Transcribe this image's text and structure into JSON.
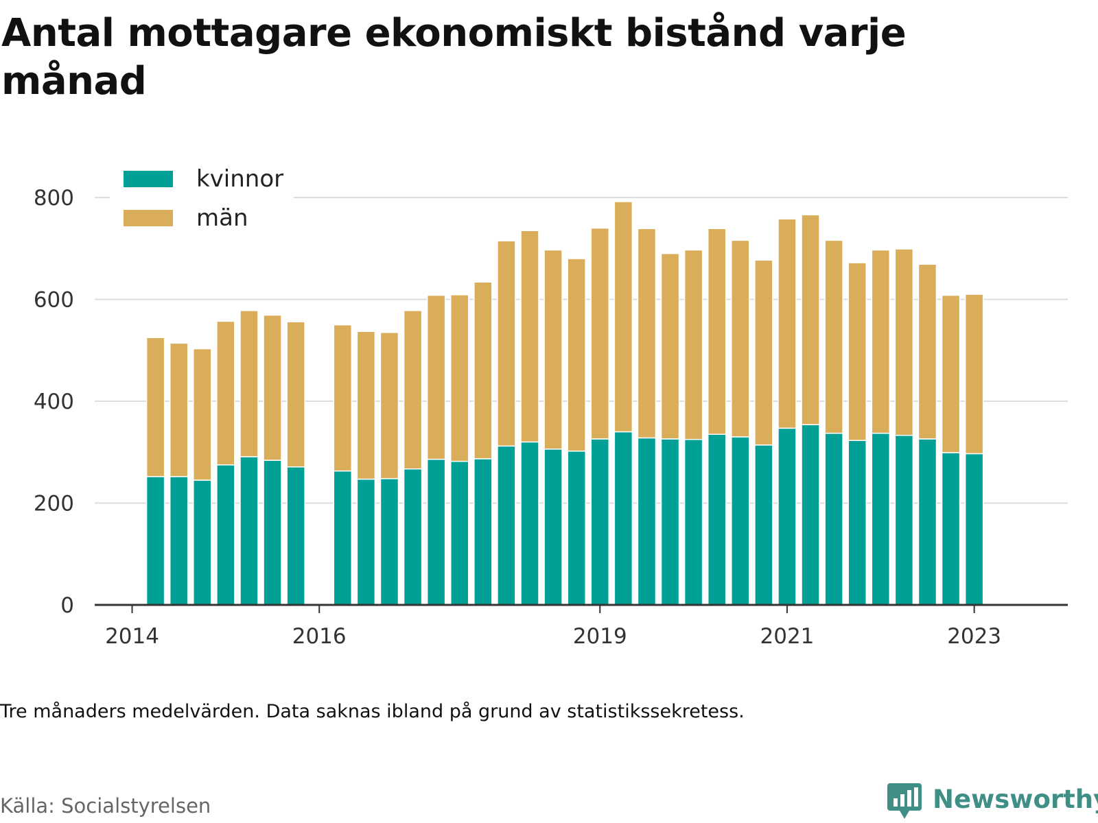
{
  "title": "Antal mottagare ekonomiskt bistånd varje månad",
  "note": "Tre månaders medelvärden. Data saknas ibland på grund av statistikssekretess.",
  "source": "Källa: Socialstyrelsen",
  "brand": {
    "name": "Newsworthy",
    "icon": "bar-chart-speech-bubble-icon"
  },
  "colors": {
    "kvinnor": "#00a096",
    "man": "#d9ad5a",
    "grid": "#dddddd",
    "axis": "#333333"
  },
  "chart_data": {
    "type": "bar",
    "stacked": true,
    "title": "Antal mottagare ekonomiskt bistånd varje månad",
    "xlabel": "",
    "ylabel": "",
    "ylim": [
      0,
      800
    ],
    "yticks": [
      0,
      200,
      400,
      600,
      800
    ],
    "xticks": [
      {
        "label": "2014",
        "at": 2014.0
      },
      {
        "label": "2016",
        "at": 2016.0
      },
      {
        "label": "2019",
        "at": 2019.0
      },
      {
        "label": "2021",
        "at": 2021.0
      },
      {
        "label": "2023",
        "at": 2023.0
      }
    ],
    "x": [
      2014.25,
      2014.5,
      2014.75,
      2015.0,
      2015.25,
      2015.5,
      2015.75,
      2016.25,
      2016.5,
      2016.75,
      2017.0,
      2017.25,
      2017.5,
      2017.75,
      2018.0,
      2018.25,
      2018.5,
      2018.75,
      2019.0,
      2019.25,
      2019.5,
      2019.75,
      2020.0,
      2020.25,
      2020.5,
      2020.75,
      2021.0,
      2021.25,
      2021.5,
      2021.75,
      2022.0,
      2022.25,
      2022.5,
      2022.75,
      2023.0
    ],
    "grid": true,
    "legend_position": "top-left",
    "series": [
      {
        "name": "kvinnor",
        "values": [
          252,
          252,
          245,
          275,
          291,
          284,
          271,
          263,
          247,
          248,
          267,
          286,
          282,
          287,
          312,
          320,
          306,
          302,
          326,
          340,
          328,
          326,
          325,
          335,
          330,
          314,
          347,
          354,
          337,
          323,
          337,
          333,
          326,
          299,
          297
        ]
      },
      {
        "name": "män",
        "values": [
          273,
          262,
          258,
          282,
          287,
          285,
          285,
          287,
          290,
          287,
          311,
          322,
          327,
          347,
          403,
          415,
          391,
          378,
          414,
          452,
          411,
          364,
          372,
          404,
          386,
          363,
          411,
          412,
          379,
          349,
          360,
          366,
          343,
          309,
          313
        ]
      }
    ]
  }
}
